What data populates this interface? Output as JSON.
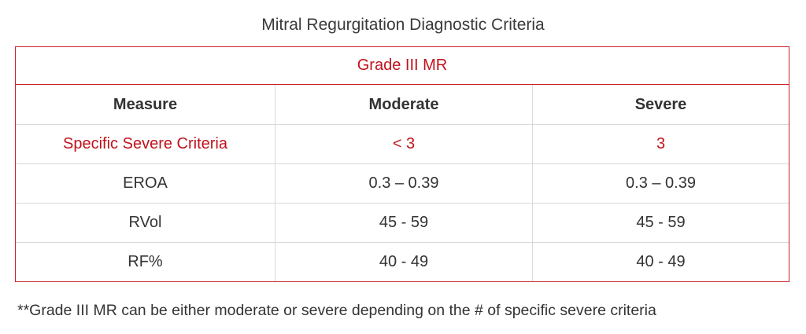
{
  "title": "Mitral Regurgitation Diagnostic Criteria",
  "table": {
    "grade_label": "Grade III MR",
    "headers": [
      "Measure",
      "Moderate",
      "Severe"
    ],
    "rows": [
      [
        "Specific Severe Criteria",
        "< 3",
        "3"
      ],
      [
        "EROA",
        "0.3 – 0.39",
        "0.3 – 0.39"
      ],
      [
        "RVol",
        "45 - 59",
        "45 - 59"
      ],
      [
        "RF%",
        "40 - 49",
        "40 - 49"
      ]
    ]
  },
  "footnote": "**Grade III MR can be either moderate or severe depending on the # of specific severe criteria",
  "colors": {
    "accent": "#c0121b",
    "border_accent": "#c8202a",
    "grid": "#d9d9d9",
    "text": "#333333"
  }
}
